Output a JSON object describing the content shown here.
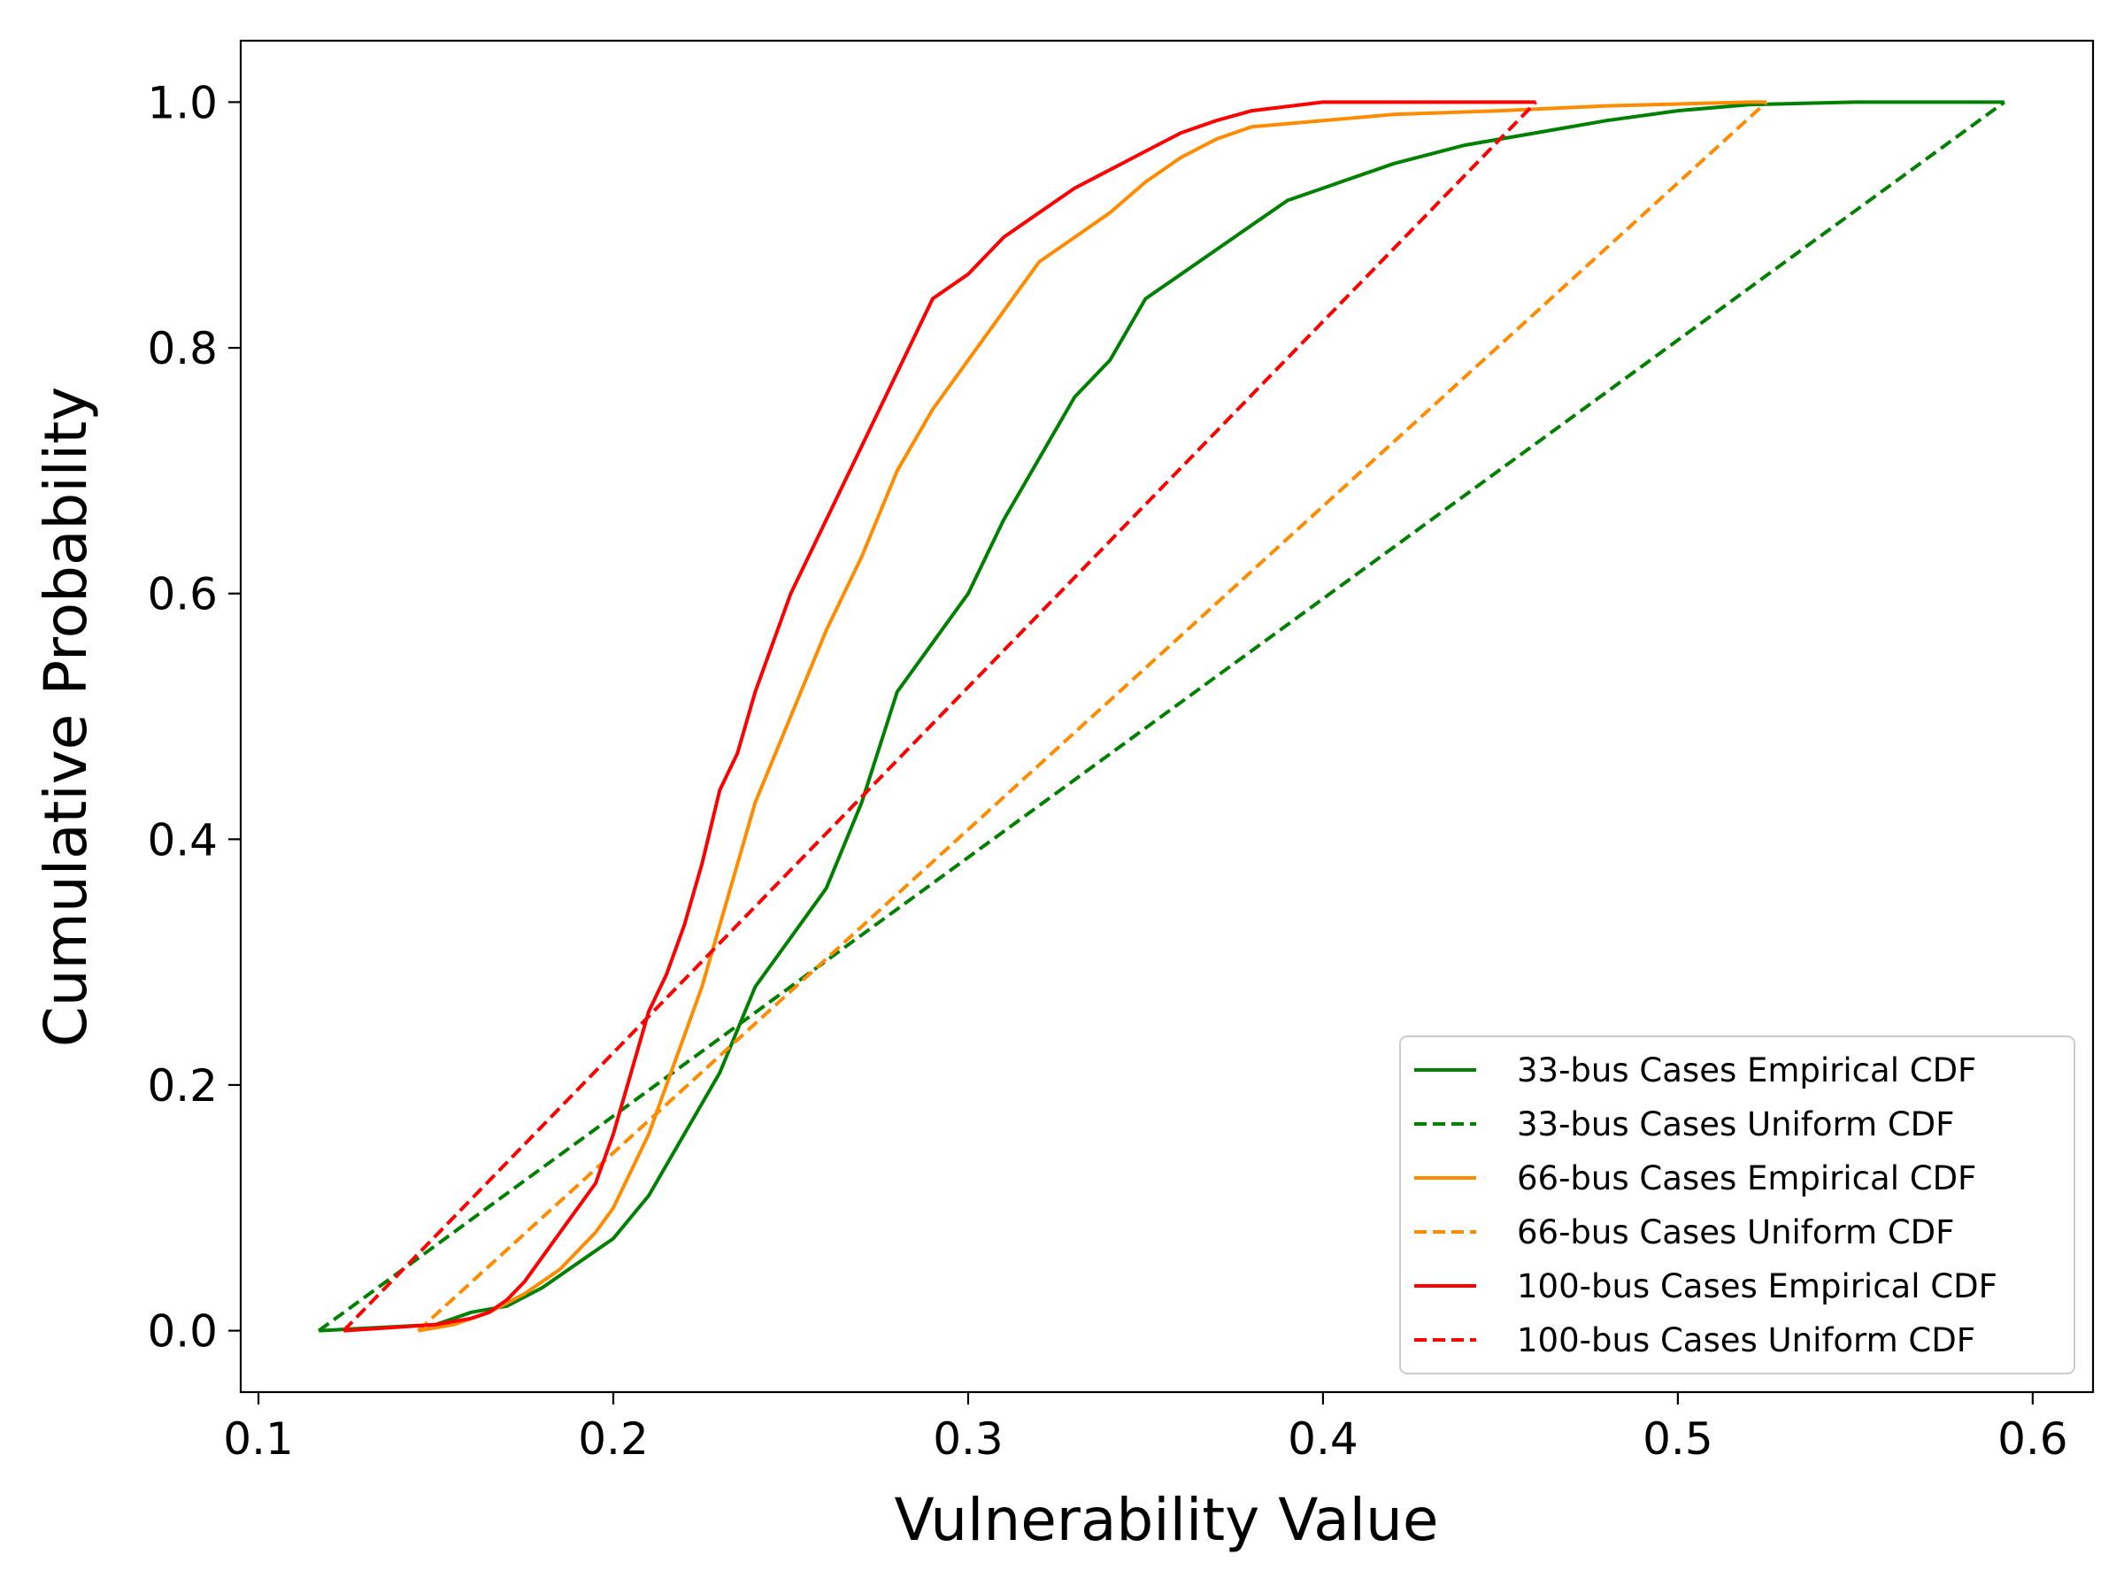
{
  "chart_data": {
    "type": "line",
    "title": "",
    "xlabel": "Vulnerability Value",
    "ylabel": "Cumulative Probability",
    "xlim": [
      0.095,
      0.617
    ],
    "ylim": [
      -0.05,
      1.05
    ],
    "xticks": [
      0.1,
      0.2,
      0.3,
      0.4,
      0.5,
      0.6
    ],
    "xtick_labels": [
      "0.1",
      "0.2",
      "0.3",
      "0.4",
      "0.5",
      "0.6"
    ],
    "yticks": [
      0.0,
      0.2,
      0.4,
      0.6,
      0.8,
      1.0
    ],
    "ytick_labels": [
      "0.0",
      "0.2",
      "0.4",
      "0.6",
      "0.8",
      "1.0"
    ],
    "grid": false,
    "legend_position": "lower-right",
    "series": [
      {
        "name": "33-bus Cases Empirical CDF",
        "color": "#008000",
        "style": "solid",
        "x": [
          0.117,
          0.15,
          0.16,
          0.17,
          0.18,
          0.19,
          0.2,
          0.21,
          0.22,
          0.23,
          0.24,
          0.25,
          0.26,
          0.27,
          0.28,
          0.29,
          0.3,
          0.31,
          0.32,
          0.33,
          0.34,
          0.35,
          0.36,
          0.37,
          0.38,
          0.39,
          0.4,
          0.42,
          0.44,
          0.46,
          0.48,
          0.5,
          0.52,
          0.55,
          0.592
        ],
        "y": [
          0.0,
          0.005,
          0.015,
          0.02,
          0.035,
          0.055,
          0.075,
          0.11,
          0.16,
          0.21,
          0.28,
          0.32,
          0.36,
          0.43,
          0.52,
          0.56,
          0.6,
          0.66,
          0.71,
          0.76,
          0.79,
          0.84,
          0.86,
          0.88,
          0.9,
          0.92,
          0.93,
          0.95,
          0.965,
          0.975,
          0.985,
          0.993,
          0.998,
          1.0,
          1.0
        ]
      },
      {
        "name": "33-bus Cases Uniform CDF",
        "color": "#008000",
        "style": "dashed",
        "x": [
          0.117,
          0.592
        ],
        "y": [
          0.0,
          1.0
        ]
      },
      {
        "name": "66-bus Cases Empirical CDF",
        "color": "#ff8c00",
        "style": "solid",
        "x": [
          0.145,
          0.155,
          0.165,
          0.175,
          0.185,
          0.195,
          0.2,
          0.205,
          0.21,
          0.215,
          0.22,
          0.225,
          0.23,
          0.24,
          0.25,
          0.26,
          0.27,
          0.28,
          0.29,
          0.3,
          0.31,
          0.32,
          0.33,
          0.34,
          0.35,
          0.36,
          0.37,
          0.38,
          0.4,
          0.42,
          0.45,
          0.48,
          0.52,
          0.525
        ],
        "y": [
          0.0,
          0.005,
          0.015,
          0.03,
          0.05,
          0.08,
          0.1,
          0.13,
          0.16,
          0.2,
          0.24,
          0.28,
          0.33,
          0.43,
          0.5,
          0.57,
          0.63,
          0.7,
          0.75,
          0.79,
          0.83,
          0.87,
          0.89,
          0.91,
          0.935,
          0.955,
          0.97,
          0.98,
          0.985,
          0.99,
          0.993,
          0.997,
          1.0,
          1.0
        ]
      },
      {
        "name": "66-bus Cases Uniform CDF",
        "color": "#ff8c00",
        "style": "dashed",
        "x": [
          0.145,
          0.525
        ],
        "y": [
          0.0,
          1.0
        ]
      },
      {
        "name": "100-bus Cases Empirical CDF",
        "color": "#ff0000",
        "style": "solid",
        "x": [
          0.124,
          0.15,
          0.16,
          0.165,
          0.17,
          0.175,
          0.18,
          0.185,
          0.19,
          0.195,
          0.2,
          0.205,
          0.21,
          0.215,
          0.22,
          0.225,
          0.23,
          0.235,
          0.24,
          0.25,
          0.26,
          0.27,
          0.28,
          0.29,
          0.3,
          0.31,
          0.32,
          0.33,
          0.34,
          0.35,
          0.36,
          0.37,
          0.38,
          0.4,
          0.42,
          0.46
        ],
        "y": [
          0.0,
          0.005,
          0.01,
          0.015,
          0.025,
          0.04,
          0.06,
          0.08,
          0.1,
          0.12,
          0.16,
          0.21,
          0.26,
          0.29,
          0.33,
          0.38,
          0.44,
          0.47,
          0.52,
          0.6,
          0.66,
          0.72,
          0.78,
          0.84,
          0.86,
          0.89,
          0.91,
          0.93,
          0.945,
          0.96,
          0.975,
          0.985,
          0.993,
          1.0,
          1.0,
          1.0
        ]
      },
      {
        "name": "100-bus Cases Uniform CDF",
        "color": "#ff0000",
        "style": "dashed",
        "x": [
          0.124,
          0.46
        ],
        "y": [
          0.0,
          1.0
        ]
      }
    ]
  }
}
